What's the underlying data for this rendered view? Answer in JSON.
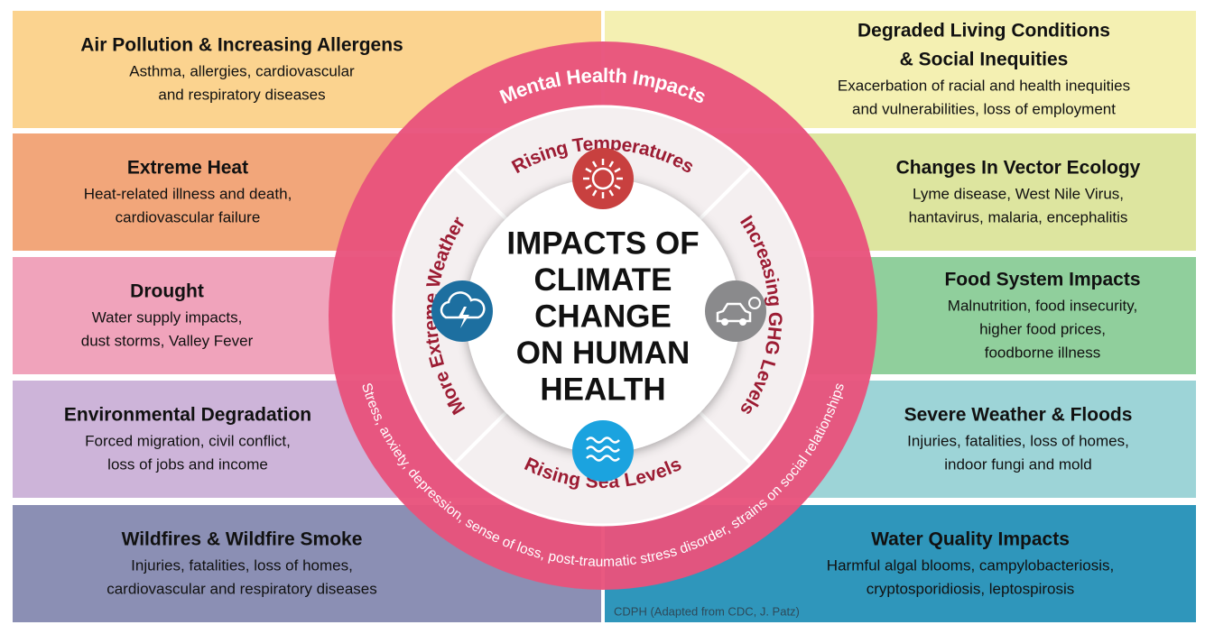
{
  "left_panels": [
    {
      "title": [
        "Air Pollution & Increasing Allergens"
      ],
      "description": [
        "Asthma, allergies, cardiovascular",
        "and respiratory diseases"
      ]
    },
    {
      "title": [
        "Extreme Heat"
      ],
      "description": [
        "Heat-related illness and death,",
        "cardiovascular failure"
      ]
    },
    {
      "title": [
        "Drought"
      ],
      "description": [
        "Water supply impacts,",
        "dust storms, Valley Fever"
      ]
    },
    {
      "title": [
        "Environmental Degradation"
      ],
      "description": [
        "Forced migration, civil conflict,",
        "loss of jobs and income"
      ]
    },
    {
      "title": [
        "Wildfires & Wildfire Smoke"
      ],
      "description": [
        "Injuries, fatalities, loss of homes,",
        "cardiovascular and respiratory diseases"
      ]
    }
  ],
  "right_panels": [
    {
      "title": [
        "Degraded Living Conditions",
        "& Social Inequities"
      ],
      "description": [
        "Exacerbation of racial and health inequities",
        "and vulnerabilities, loss of employment"
      ]
    },
    {
      "title": [
        "Changes In Vector Ecology"
      ],
      "description": [
        "Lyme disease, West Nile Virus,",
        "hantavirus, malaria, encephalitis"
      ]
    },
    {
      "title": [
        "Food System Impacts"
      ],
      "description": [
        "Malnutrition, food insecurity,",
        "higher food prices,",
        "foodborne illness"
      ]
    },
    {
      "title": [
        "Severe Weather & Floods"
      ],
      "description": [
        "Injuries, fatalities, loss of homes,",
        "indoor fungi and mold"
      ]
    },
    {
      "title": [
        "Water Quality Impacts"
      ],
      "description": [
        "Harmful algal blooms, campylobacteriosis,",
        "cryptosporidiosis, leptospirosis"
      ]
    }
  ],
  "ring": {
    "title": "Mental Health Impacts",
    "description": "Stress, anxiety, depression, sense of loss, post-traumatic stress disorder, strains on social relationships"
  },
  "drivers": [
    {
      "label": "Rising Temperatures"
    },
    {
      "label": "Increasing GHG Levels"
    },
    {
      "label": "Rising Sea Levels"
    },
    {
      "label": "More Extreme Weather"
    }
  ],
  "center": {
    "title": [
      "IMPACTS OF",
      "CLIMATE",
      "CHANGE",
      "ON HUMAN",
      "HEALTH"
    ]
  },
  "credit": "CDPH (Adapted from CDC, J. Patz)"
}
